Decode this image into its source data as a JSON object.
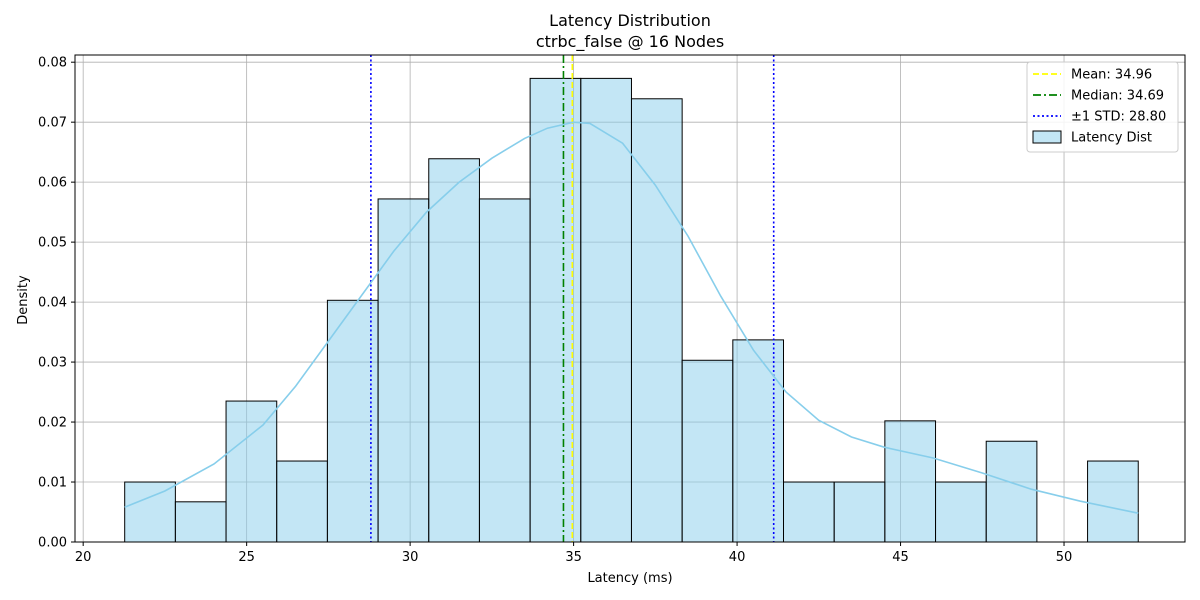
{
  "chart_data": {
    "type": "bar",
    "title": "Latency Distribution",
    "subtitle": "ctrbc_false @ 16 Nodes",
    "xlabel": "Latency (ms)",
    "ylabel": "Density",
    "xlim": [
      19.75,
      53.7
    ],
    "ylim": [
      0,
      0.0812
    ],
    "xticks": [
      20,
      25,
      30,
      35,
      40,
      45,
      50
    ],
    "yticks": [
      0.0,
      0.01,
      0.02,
      0.03,
      0.04,
      0.05,
      0.06,
      0.07,
      0.08
    ],
    "ytick_labels": [
      "0.00",
      "0.01",
      "0.02",
      "0.03",
      "0.04",
      "0.05",
      "0.06",
      "0.07",
      "0.08"
    ],
    "grid": true,
    "legend_position": "top-right",
    "histogram": {
      "name": "Latency Dist",
      "color": "#87ceeb",
      "bin_edges": [
        21.27,
        22.82,
        24.37,
        25.92,
        27.47,
        29.02,
        30.57,
        32.12,
        33.67,
        35.22,
        36.77,
        38.32,
        39.87,
        41.42,
        42.97,
        44.52,
        46.07,
        47.62,
        49.17,
        50.72,
        52.27
      ],
      "densities": [
        0.01,
        0.0067,
        0.0235,
        0.0135,
        0.0403,
        0.0572,
        0.0639,
        0.0572,
        0.0773,
        0.0773,
        0.0739,
        0.0303,
        0.0337,
        0.01,
        0.01,
        0.0202,
        0.01,
        0.0168,
        0.0,
        0.0135
      ]
    },
    "kde": {
      "color": "#87ceeb",
      "x": [
        21.27,
        22.5,
        24.0,
        25.5,
        26.5,
        27.5,
        28.5,
        29.5,
        30.5,
        31.5,
        32.5,
        33.5,
        34.2,
        35.0,
        35.5,
        36.5,
        37.5,
        38.5,
        39.5,
        40.5,
        41.5,
        42.5,
        43.5,
        44.5,
        46.0,
        47.5,
        49.0,
        50.5,
        52.27
      ],
      "y": [
        0.0058,
        0.0085,
        0.013,
        0.0195,
        0.026,
        0.0335,
        0.041,
        0.0485,
        0.055,
        0.06,
        0.064,
        0.0673,
        0.069,
        0.07,
        0.0698,
        0.0665,
        0.0595,
        0.051,
        0.041,
        0.032,
        0.025,
        0.0203,
        0.0175,
        0.0158,
        0.014,
        0.0115,
        0.0088,
        0.0068,
        0.0048
      ]
    },
    "lines": [
      {
        "name": "Mean: 34.96",
        "x": 34.96,
        "color": "#ffff00",
        "style": "dashed"
      },
      {
        "name": "Median: 34.69",
        "x": 34.69,
        "color": "#008000",
        "style": "dashdot"
      },
      {
        "name": "±1 STD: 28.80",
        "x": 28.8,
        "color": "#0000ff",
        "style": "dotted"
      },
      {
        "name": "",
        "x": 41.12,
        "color": "#0000ff",
        "style": "dotted"
      }
    ],
    "legend": [
      {
        "label": "Mean: 34.96",
        "kind": "line",
        "color": "#ffff00",
        "style": "dashed"
      },
      {
        "label": "Median: 34.69",
        "kind": "line",
        "color": "#008000",
        "style": "dashdot"
      },
      {
        "label": "±1 STD: 28.80",
        "kind": "line",
        "color": "#0000ff",
        "style": "dotted"
      },
      {
        "label": "Latency Dist",
        "kind": "patch",
        "color": "#87ceeb"
      }
    ]
  }
}
